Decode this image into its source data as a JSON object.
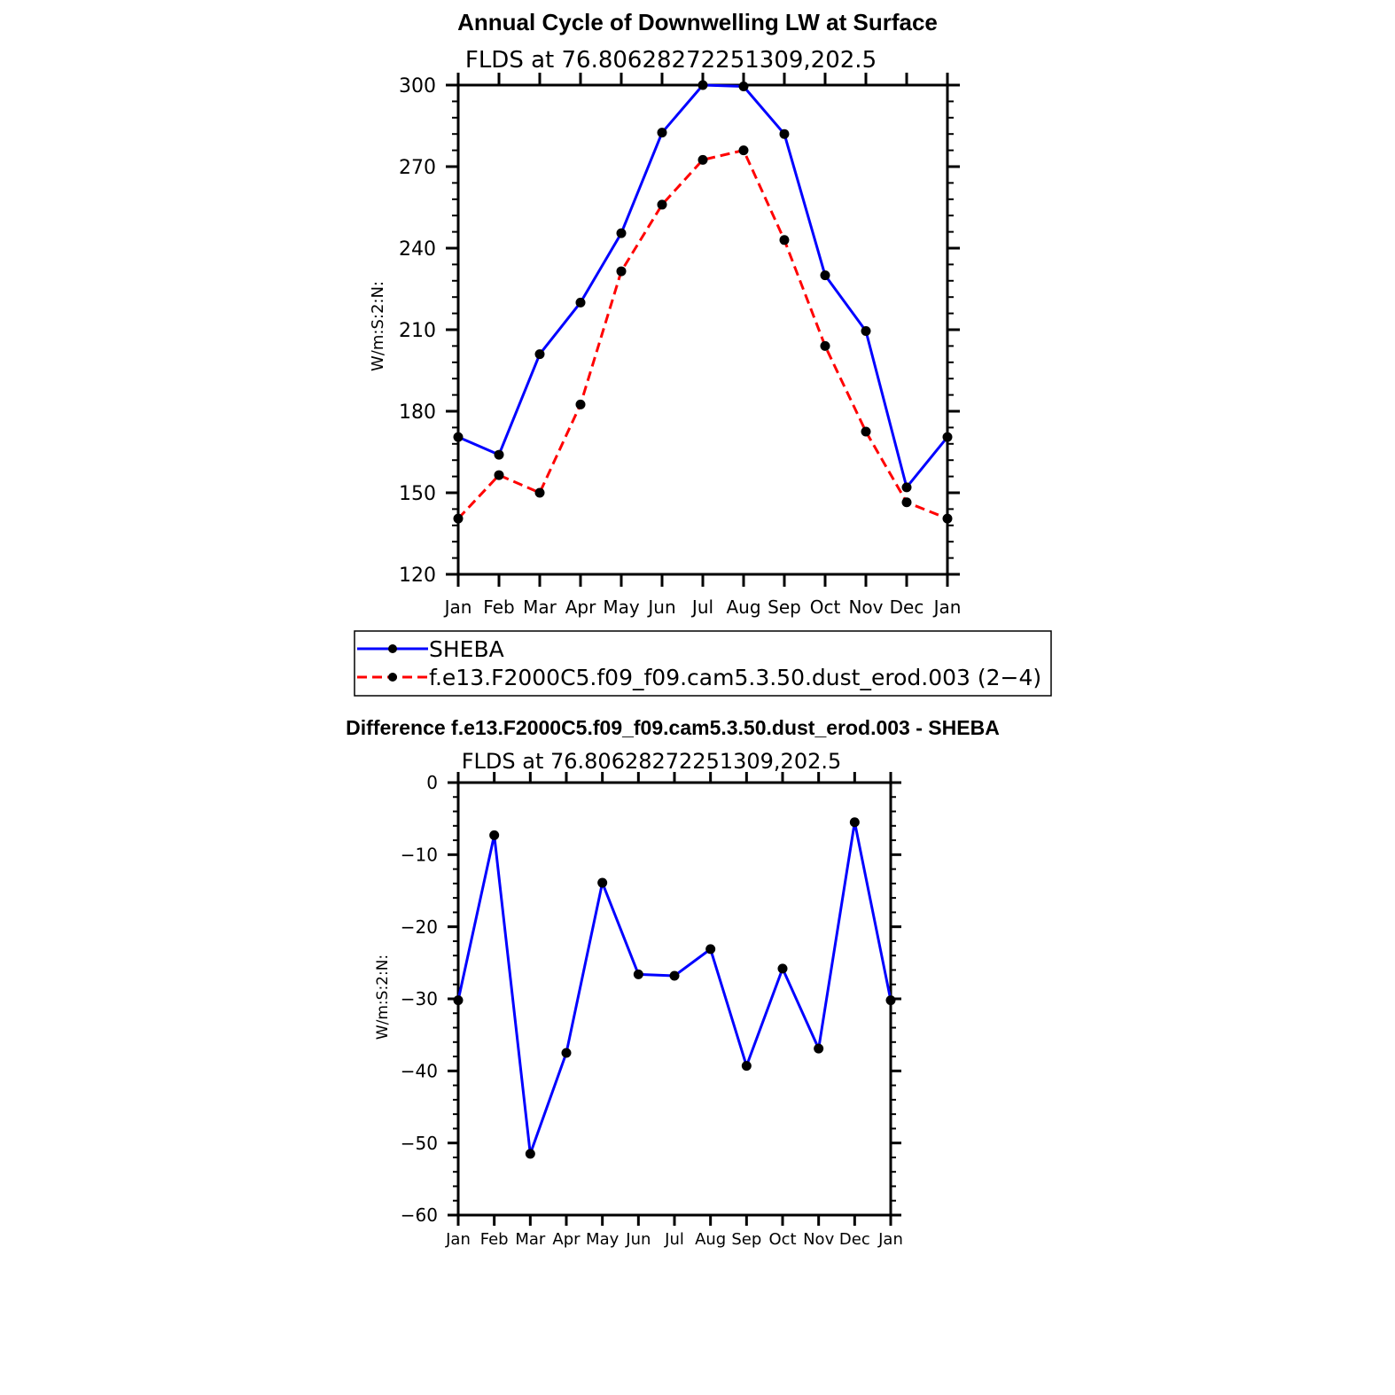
{
  "chart_data": [
    {
      "type": "line",
      "title": "Annual Cycle of Downwelling LW at Surface",
      "subtitle": "FLDS at 76.80628272251309,202.5",
      "ylabel": "W/m:S:2:N:",
      "xlabel": "",
      "categories": [
        "Jan",
        "Feb",
        "Mar",
        "Apr",
        "May",
        "Jun",
        "Jul",
        "Aug",
        "Sep",
        "Oct",
        "Nov",
        "Dec",
        "Jan"
      ],
      "ylim": [
        120,
        300
      ],
      "yticks": [
        120,
        150,
        180,
        210,
        240,
        270,
        300
      ],
      "grid": false,
      "legend_position": "bottom",
      "series": [
        {
          "name": "SHEBA",
          "color": "#0000ff",
          "dash": "solid",
          "values": [
            170.5,
            164,
            201,
            220,
            245.5,
            282.5,
            300,
            299.5,
            282,
            230,
            209.5,
            152,
            170.5
          ]
        },
        {
          "name": "f.e13.F2000C5.f09_f09.cam5.3.50.dust_erod.003 (2−4)",
          "color": "#ff0000",
          "dash": "dashed",
          "values": [
            140.5,
            156.5,
            150,
            182.5,
            231.5,
            256,
            272.5,
            276,
            243,
            204,
            172.5,
            146.5,
            140.5
          ]
        }
      ]
    },
    {
      "type": "line",
      "title": "Difference f.e13.F2000C5.f09_f09.cam5.3.50.dust_erod.003 - SHEBA",
      "subtitle": "FLDS at 76.80628272251309,202.5",
      "ylabel": "W/m:S:2:N:",
      "xlabel": "",
      "categories": [
        "Jan",
        "Feb",
        "Mar",
        "Apr",
        "May",
        "Jun",
        "Jul",
        "Aug",
        "Sep",
        "Oct",
        "Nov",
        "Dec",
        "Jan"
      ],
      "ylim": [
        -60,
        0
      ],
      "yticks": [
        -60,
        -50,
        -40,
        -30,
        -20,
        -10,
        0
      ],
      "ytick_labels": [
        "−60",
        "−50",
        "−40",
        "−30",
        "−20",
        "−10",
        "0"
      ],
      "grid": false,
      "series": [
        {
          "color": "#0000ff",
          "dash": "solid",
          "values": [
            -30.2,
            -7.3,
            -51.5,
            -37.5,
            -13.9,
            -26.6,
            -26.8,
            -23.1,
            -39.3,
            -25.8,
            -36.9,
            -5.5,
            -30.2
          ]
        }
      ]
    }
  ]
}
